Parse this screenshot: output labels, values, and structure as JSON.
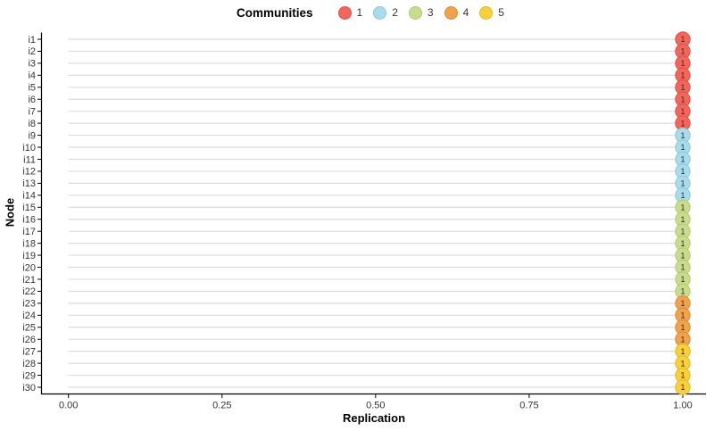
{
  "figure": {
    "background": "#ffffff",
    "axis_line_color": "#000000",
    "axis_text_color": "#333333"
  },
  "legend": {
    "title": "Communities",
    "position": "top",
    "entries": [
      {
        "label": "1",
        "color": "#F2665C",
        "border": "#E04F46"
      },
      {
        "label": "2",
        "color": "#A9DCEB",
        "border": "#86C8DE"
      },
      {
        "label": "3",
        "color": "#C9DC8E",
        "border": "#B2C96B"
      },
      {
        "label": "4",
        "color": "#F1A24D",
        "border": "#DE8A30"
      },
      {
        "label": "5",
        "color": "#F9D03B",
        "border": "#E5BA1F"
      }
    ]
  },
  "chart_data": {
    "type": "scatter",
    "style": "lollipop-dot",
    "title": "",
    "xlabel": "Replication",
    "ylabel": "Node",
    "xlim": [
      0,
      1
    ],
    "x_tick_values": [
      0,
      0.25,
      0.5,
      0.75,
      1.0
    ],
    "x_tick_labels": [
      "0.00",
      "0.25",
      "0.50",
      "0.75",
      "1.00"
    ],
    "grid": "none",
    "segment_color": "#DCDCDC",
    "point_label_color": "#2B2B2B",
    "legend_position": "top",
    "community_colors": {
      "1": {
        "fill": "#F2665C",
        "stroke": "#E04F46"
      },
      "2": {
        "fill": "#A9DCEB",
        "stroke": "#86C8DE"
      },
      "3": {
        "fill": "#C9DC8E",
        "stroke": "#B2C96B"
      },
      "4": {
        "fill": "#F1A24D",
        "stroke": "#DE8A30"
      },
      "5": {
        "fill": "#F9D03B",
        "stroke": "#E5BA1F"
      }
    },
    "nodes": [
      {
        "node": "i1",
        "replication": 1.0,
        "community": 1,
        "label": "1"
      },
      {
        "node": "i2",
        "replication": 1.0,
        "community": 1,
        "label": "1"
      },
      {
        "node": "i3",
        "replication": 1.0,
        "community": 1,
        "label": "1"
      },
      {
        "node": "i4",
        "replication": 1.0,
        "community": 1,
        "label": "1"
      },
      {
        "node": "i5",
        "replication": 1.0,
        "community": 1,
        "label": "1"
      },
      {
        "node": "i6",
        "replication": 1.0,
        "community": 1,
        "label": "1"
      },
      {
        "node": "i7",
        "replication": 1.0,
        "community": 1,
        "label": "1"
      },
      {
        "node": "i8",
        "replication": 1.0,
        "community": 1,
        "label": "1"
      },
      {
        "node": "i9",
        "replication": 1.0,
        "community": 2,
        "label": "1"
      },
      {
        "node": "i10",
        "replication": 1.0,
        "community": 2,
        "label": "1"
      },
      {
        "node": "i11",
        "replication": 1.0,
        "community": 2,
        "label": "1"
      },
      {
        "node": "i12",
        "replication": 1.0,
        "community": 2,
        "label": "1"
      },
      {
        "node": "i13",
        "replication": 1.0,
        "community": 2,
        "label": "1"
      },
      {
        "node": "i14",
        "replication": 1.0,
        "community": 2,
        "label": "1"
      },
      {
        "node": "i15",
        "replication": 1.0,
        "community": 3,
        "label": "1"
      },
      {
        "node": "i16",
        "replication": 1.0,
        "community": 3,
        "label": "1"
      },
      {
        "node": "i17",
        "replication": 1.0,
        "community": 3,
        "label": "1"
      },
      {
        "node": "i18",
        "replication": 1.0,
        "community": 3,
        "label": "1"
      },
      {
        "node": "i19",
        "replication": 1.0,
        "community": 3,
        "label": "1"
      },
      {
        "node": "i20",
        "replication": 1.0,
        "community": 3,
        "label": "1"
      },
      {
        "node": "i21",
        "replication": 1.0,
        "community": 3,
        "label": "1"
      },
      {
        "node": "i22",
        "replication": 1.0,
        "community": 3,
        "label": "1"
      },
      {
        "node": "i23",
        "replication": 1.0,
        "community": 4,
        "label": "1"
      },
      {
        "node": "i24",
        "replication": 1.0,
        "community": 4,
        "label": "1"
      },
      {
        "node": "i25",
        "replication": 1.0,
        "community": 4,
        "label": "1"
      },
      {
        "node": "i26",
        "replication": 1.0,
        "community": 4,
        "label": "1"
      },
      {
        "node": "i27",
        "replication": 1.0,
        "community": 5,
        "label": "1"
      },
      {
        "node": "i28",
        "replication": 1.0,
        "community": 5,
        "label": "1"
      },
      {
        "node": "i29",
        "replication": 1.0,
        "community": 5,
        "label": "1"
      },
      {
        "node": "i30",
        "replication": 1.0,
        "community": 5,
        "label": "1"
      }
    ]
  }
}
